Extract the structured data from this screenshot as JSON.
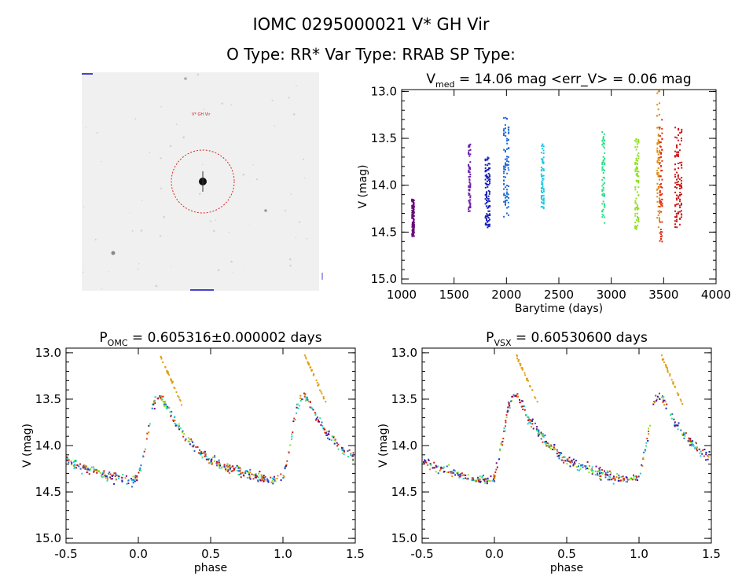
{
  "header": {
    "title": "IOMC 0295000021    V* GH Vir",
    "subtitle": "O Type: RR*  Var Type: RRAB  SP Type:"
  },
  "sky_image": {
    "target_label": "V* GH Vir"
  },
  "chart_data": [
    {
      "id": "lightcurve",
      "type": "scatter",
      "title": "V_med = 14.06 mag <err_V> = 0.06 mag",
      "title_parts": {
        "v": "V",
        "sub": "med",
        "rest": " = 14.06 mag <err_V> = 0.06 mag"
      },
      "xlabel": "Barytime (days)",
      "ylabel": "V (mag)",
      "xlim": [
        1000,
        4000
      ],
      "ylim": [
        15.05,
        12.98
      ],
      "y_inverted": true,
      "xticks": [
        "1000",
        "1500",
        "2000",
        "2500",
        "3000",
        "3500",
        "4000"
      ],
      "yticks": [
        "13.0",
        "13.5",
        "14.0",
        "14.5",
        "15.0"
      ],
      "series": [
        {
          "color": "#6a0a7a",
          "x": [
            1100,
            1105,
            1110,
            1113,
            1118
          ],
          "ymin": 14.15,
          "ymax": 14.55
        },
        {
          "color": "#6a1fa8",
          "x": [
            1640,
            1648,
            1655
          ],
          "ymin": 13.55,
          "ymax": 14.3
        },
        {
          "color": "#1a22b8",
          "x": [
            1800,
            1810,
            1820,
            1830,
            1840
          ],
          "ymin": 13.7,
          "ymax": 14.45
        },
        {
          "color": "#1e6ad8",
          "x": [
            1975,
            1990,
            2005,
            2020
          ],
          "ymin": 13.28,
          "ymax": 14.38
        },
        {
          "color": "#1ec8e0",
          "x": [
            2335,
            2345,
            2355
          ],
          "ymin": 13.55,
          "ymax": 14.25
        },
        {
          "color": "#2ee08a",
          "x": [
            2915,
            2925,
            2935
          ],
          "ymin": 13.43,
          "ymax": 14.42
        },
        {
          "color": "#8ee020",
          "x": [
            3230,
            3240,
            3250,
            3260
          ],
          "ymin": 13.48,
          "ymax": 14.5
        },
        {
          "color": "#e08a10",
          "x": [
            3440,
            3450,
            3460
          ],
          "ymin": 12.98,
          "ymax": 14.45
        },
        {
          "color": "#e03010",
          "x": [
            3465,
            3475,
            3485
          ],
          "ymin": 13.3,
          "ymax": 14.62
        },
        {
          "color": "#cc1818",
          "x": [
            3610,
            3625,
            3640,
            3655,
            3670
          ],
          "ymin": 13.38,
          "ymax": 14.45
        }
      ]
    },
    {
      "id": "phase_omc",
      "type": "scatter",
      "title": "P_OMC = 0.605316±0.000002 days",
      "title_parts": {
        "v": "P",
        "sub": "OMC",
        "rest": " = 0.605316±0.000002 days"
      },
      "xlabel": "phase",
      "ylabel": "V (mag)",
      "xlim": [
        -0.5,
        1.5
      ],
      "ylim": [
        15.05,
        12.95
      ],
      "y_inverted": true,
      "xticks": [
        "-0.5",
        "0.0",
        "0.5",
        "1.0",
        "1.5"
      ],
      "yticks": [
        "13.0",
        "13.5",
        "14.0",
        "14.5",
        "15.0"
      ],
      "template": [
        [
          0.0,
          14.35
        ],
        [
          0.05,
          14.0
        ],
        [
          0.1,
          13.55
        ],
        [
          0.15,
          13.45
        ],
        [
          0.25,
          13.75
        ],
        [
          0.35,
          13.95
        ],
        [
          0.45,
          14.1
        ],
        [
          0.55,
          14.2
        ],
        [
          0.7,
          14.28
        ],
        [
          0.85,
          14.35
        ],
        [
          0.95,
          14.38
        ],
        [
          1.0,
          14.35
        ]
      ],
      "series_colors": [
        "#6a0a7a",
        "#1a22b8",
        "#1e6ad8",
        "#1ec8e0",
        "#2ee08a",
        "#8ee020",
        "#e08a10",
        "#e03010",
        "#cc1818"
      ],
      "highlight": {
        "color": "#e0a010",
        "x_range": [
          0.15,
          0.3
        ],
        "y_range": [
          13.02,
          13.55
        ]
      }
    },
    {
      "id": "phase_vsx",
      "type": "scatter",
      "title": "P_VSX = 0.60530600 days",
      "title_parts": {
        "v": "P",
        "sub": "VSX",
        "rest": " = 0.60530600 days"
      },
      "xlabel": "phase",
      "ylabel": "V (mag)",
      "xlim": [
        -0.5,
        1.5
      ],
      "ylim": [
        15.05,
        12.95
      ],
      "y_inverted": true,
      "xticks": [
        "-0.5",
        "0.0",
        "0.5",
        "1.0",
        "1.5"
      ],
      "yticks": [
        "13.0",
        "13.5",
        "14.0",
        "14.5",
        "15.0"
      ],
      "template": [
        [
          0.0,
          14.35
        ],
        [
          0.05,
          14.0
        ],
        [
          0.1,
          13.55
        ],
        [
          0.15,
          13.45
        ],
        [
          0.25,
          13.75
        ],
        [
          0.35,
          13.95
        ],
        [
          0.45,
          14.1
        ],
        [
          0.55,
          14.2
        ],
        [
          0.7,
          14.28
        ],
        [
          0.85,
          14.35
        ],
        [
          0.95,
          14.38
        ],
        [
          1.0,
          14.35
        ]
      ],
      "series_colors": [
        "#6a0a7a",
        "#1a22b8",
        "#1e6ad8",
        "#1ec8e0",
        "#2ee08a",
        "#8ee020",
        "#e08a10",
        "#e03010",
        "#cc1818"
      ],
      "highlight": {
        "color": "#e0a010",
        "x_range": [
          0.15,
          0.3
        ],
        "y_range": [
          13.02,
          13.55
        ]
      }
    }
  ]
}
